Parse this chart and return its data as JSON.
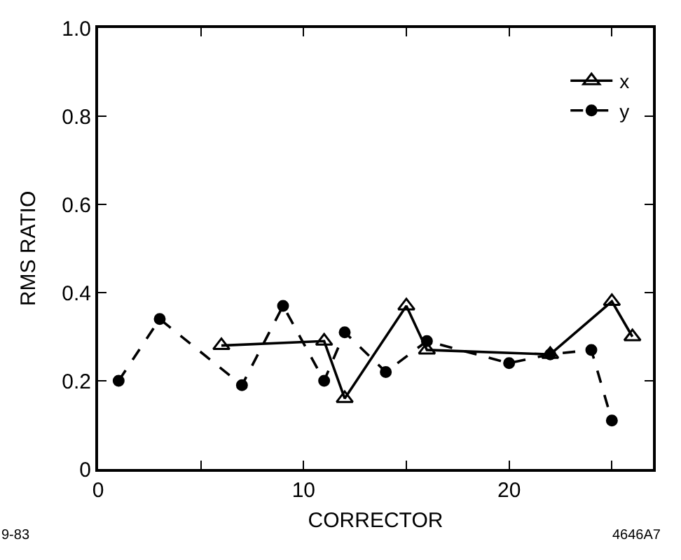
{
  "chart_data": {
    "type": "line",
    "xlabel": "CORRECTOR",
    "ylabel": "RMS RATIO",
    "xlim": [
      0,
      27
    ],
    "xticks": [
      0,
      {
        "value": 5,
        "label": null
      },
      10,
      {
        "value": 15,
        "label": null
      },
      20,
      {
        "value": 25,
        "label": null
      }
    ],
    "ylim": [
      0,
      1.0
    ],
    "yticks": [
      0,
      0.2,
      0.4,
      0.6,
      0.8,
      {
        "value": 1.0,
        "label": "1.0"
      }
    ],
    "legend": "top right",
    "annotations": [
      "9-83",
      "4646A7"
    ],
    "series": [
      {
        "name": "x",
        "color": "#000000",
        "marker": "triangle",
        "line_style": "solid",
        "x": [
          6,
          11,
          12,
          15,
          16,
          22,
          25,
          26
        ],
        "values": [
          0.28,
          0.29,
          0.16,
          0.37,
          0.27,
          0.26,
          0.38,
          0.3
        ]
      },
      {
        "name": "y",
        "color": "#000000",
        "marker": "circle",
        "line_style": "dashed",
        "x": [
          1,
          3,
          7,
          9,
          11,
          12,
          14,
          16,
          20,
          22,
          24,
          25
        ],
        "values": [
          0.2,
          0.34,
          0.19,
          0.37,
          0.2,
          0.31,
          0.22,
          0.29,
          0.24,
          0.26,
          0.27,
          0.11
        ]
      }
    ]
  }
}
